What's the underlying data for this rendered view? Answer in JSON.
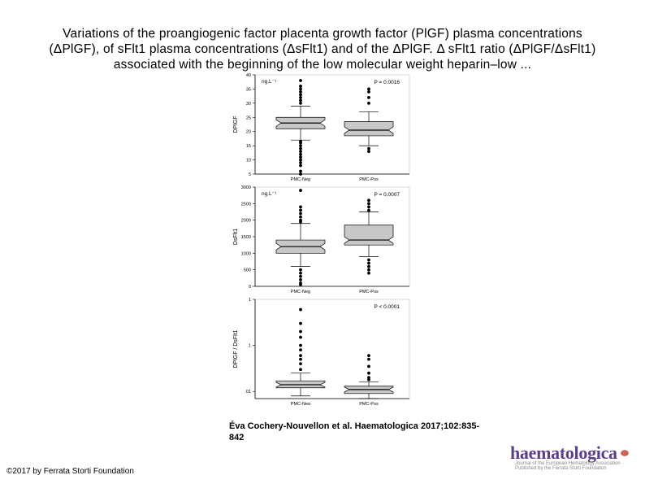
{
  "slide": {
    "title_lines": [
      "Variations of the proangiogenic factor placenta growth factor (PlGF) plasma concentrations",
      "(ΔPlGF), of sFlt1 plasma concentrations (ΔsFlt1) and of the ΔPlGF. Δ sFlt1 ratio (ΔPlGF/ΔsFlt1)",
      "associated with the beginning of the low molecular weight heparin–low ..."
    ],
    "citation_line1": "Éva Cochery-Nouvellon et al. Haematologica 2017;102:835-",
    "citation_line2": "842",
    "copyright": "©2017 by Ferrata Storti Foundation"
  },
  "logo": {
    "text": "haematologica",
    "tagline": "Journal of the European Hematology Association · Published by the Ferrata Storti Foundation",
    "brand_color": "#5b3f8c",
    "accent_color": "#c0392b"
  },
  "colors": {
    "box_fill": "#c8c8c8",
    "median": "#000000",
    "point": "#000000"
  },
  "chart_data": [
    {
      "type": "box",
      "ylabel": "DPlGF",
      "unit": "ng.L⁻¹",
      "pvalue": "P = 0.0016",
      "categories": [
        "PMC-Neg",
        "PMC-Pos"
      ],
      "ylim": [
        5,
        40
      ],
      "yticks": [
        "5",
        "10",
        "15",
        "20",
        "25",
        "30",
        "35",
        "40"
      ],
      "yscale": "linear",
      "boxes": [
        {
          "name": "PMC-Neg",
          "whisker_low": 17,
          "q1": 21,
          "median": 23,
          "q3": 25,
          "whisker_high": 29,
          "outliers": [
            5,
            6,
            8,
            9,
            10,
            11,
            12,
            13,
            14,
            15,
            16,
            16.5,
            30,
            31,
            32,
            33,
            34,
            35,
            36,
            38
          ]
        },
        {
          "name": "PMC-Pos",
          "whisker_low": 15,
          "q1": 18.5,
          "median": 20.5,
          "q3": 23.5,
          "whisker_high": 27,
          "outliers": [
            13,
            14,
            30,
            32,
            34,
            35
          ]
        }
      ]
    },
    {
      "type": "box",
      "ylabel": "DsFlt1",
      "unit": "ng.L⁻¹",
      "pvalue": "P = 0.0007",
      "categories": [
        "PMC-Neg",
        "PMC-Pos"
      ],
      "ylim": [
        0,
        3000
      ],
      "yticks": [
        "0",
        "500",
        "1000",
        "1500",
        "2000",
        "2500",
        "3000"
      ],
      "yscale": "linear",
      "boxes": [
        {
          "name": "PMC-Neg",
          "whisker_low": 600,
          "q1": 1000,
          "median": 1200,
          "q3": 1400,
          "whisker_high": 1900,
          "outliers": [
            50,
            100,
            200,
            300,
            400,
            500,
            1950,
            2000,
            2100,
            2200,
            2300,
            2400,
            2900
          ]
        },
        {
          "name": "PMC-Pos",
          "whisker_low": 900,
          "q1": 1250,
          "median": 1400,
          "q3": 1850,
          "whisker_high": 2250,
          "outliers": [
            400,
            500,
            600,
            700,
            800,
            2300,
            2400,
            2500,
            2600
          ]
        }
      ]
    },
    {
      "type": "box",
      "ylabel": "DPlGF / DsFlt1",
      "pvalue": "P < 0.0001",
      "categories": [
        "PMC-Neg",
        "PMC-Pos"
      ],
      "ylim": [
        0.007,
        1
      ],
      "yticks": [
        ".01",
        ".1",
        "1"
      ],
      "yscale": "log",
      "boxes": [
        {
          "name": "PMC-Neg",
          "whisker_low": 0.008,
          "q1": 0.012,
          "median": 0.014,
          "q3": 0.017,
          "whisker_high": 0.025,
          "outliers": [
            0.03,
            0.04,
            0.05,
            0.06,
            0.08,
            0.1,
            0.15,
            0.2,
            0.3,
            0.6
          ]
        },
        {
          "name": "PMC-Pos",
          "whisker_low": 0.007,
          "q1": 0.009,
          "median": 0.011,
          "q3": 0.013,
          "whisker_high": 0.016,
          "outliers": [
            0.018,
            0.02,
            0.025,
            0.035,
            0.05,
            0.06
          ]
        }
      ]
    }
  ]
}
